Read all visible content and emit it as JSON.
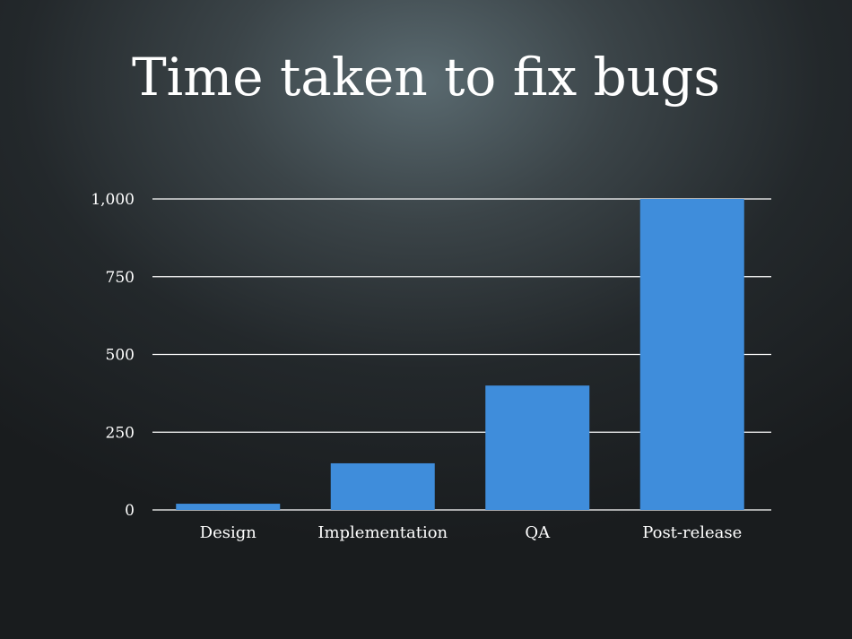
{
  "slide": {
    "title": "Time taken to fix bugs"
  },
  "colors": {
    "bar": "#3f8ddb",
    "background": "#23282b",
    "text": "#ffffff"
  },
  "chart_data": {
    "type": "bar",
    "title": "Time taken to fix bugs",
    "categories": [
      "Design",
      "Implementation",
      "QA",
      "Post-release"
    ],
    "values": [
      20,
      150,
      400,
      1000
    ],
    "ylim": [
      0,
      1000
    ],
    "yticks": [
      0,
      250,
      500,
      750,
      1000
    ],
    "ytick_labels": [
      "0",
      "250",
      "500",
      "750",
      "1,000"
    ],
    "grid": true,
    "legend": "none"
  }
}
